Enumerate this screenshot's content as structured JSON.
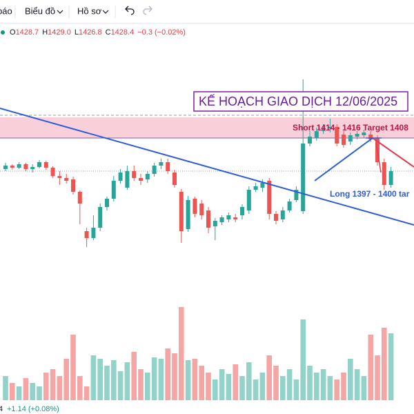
{
  "toolbar": {
    "items": [
      "báo",
      "Biểu đồ",
      "Hồ sơ"
    ]
  },
  "legend": {
    "fields": [
      {
        "label": "O",
        "value": "1428.7"
      },
      {
        "label": "H",
        "value": "1429.0"
      },
      {
        "label": "L",
        "value": "1426.8"
      },
      {
        "label": "C",
        "value": "1428.4"
      }
    ],
    "change": "−0.3 (−0.02%)"
  },
  "footer": {
    "change": "+1.14 (+0.08%)"
  },
  "chart_data": {
    "type": "candlestick",
    "title": "KẾ HOẠCH GIAO DỊCH 12/06/2025",
    "annotations": {
      "short": "Short 1414 - 1416 Target 1408",
      "long": "Long 1397 - 1400 tar"
    },
    "up_color": "#26a69a",
    "down_color": "#ef5350",
    "volume_up_color": "#92d2c8",
    "volume_down_color": "#f5a5a4",
    "ylim": [
      1413,
      1449
    ],
    "open": [
      1428.5,
      1429.0,
      1428.7,
      1429.2,
      1428.5,
      1428.8,
      1429.5,
      1428.7,
      1427.5,
      1427.2,
      1427.0,
      1425.2,
      1419.5,
      1418.5,
      1420.0,
      1423.0,
      1424.2,
      1426.8,
      1425.8,
      1428.2,
      1427.2,
      1427.0,
      1427.8,
      1429.0,
      1429.5,
      1428.0,
      1425.2,
      1419.8,
      1424.2,
      1423.5,
      1422.5,
      1420.2,
      1420.8,
      1421.2,
      1421.5,
      1421.8,
      1422.5,
      1425.5,
      1425.8,
      1426.8,
      1422.0,
      1421.2,
      1422.5,
      1424.0,
      1422.4,
      1432.2,
      1433.0,
      1434.0,
      1434.4,
      1434.6,
      1433.5,
      1432.5,
      1433.2,
      1433.4,
      1433.5,
      1433.0,
      1429.5,
      1426.2
    ],
    "high": [
      1429.4,
      1429.2,
      1429.5,
      1429.4,
      1429.2,
      1429.8,
      1429.7,
      1428.9,
      1428.2,
      1427.8,
      1427.4,
      1425.4,
      1420.0,
      1421.8,
      1423.5,
      1424.5,
      1427.5,
      1428.5,
      1429.0,
      1429.0,
      1427.8,
      1428.2,
      1429.4,
      1430.0,
      1430.0,
      1428.4,
      1425.6,
      1424.6,
      1424.5,
      1424.0,
      1423.0,
      1421.4,
      1421.8,
      1422.2,
      1422.0,
      1423.4,
      1426.0,
      1426.5,
      1427.0,
      1427.2,
      1422.4,
      1423.0,
      1424.2,
      1426.0,
      1441.5,
      1434.0,
      1434.5,
      1435.0,
      1435.8,
      1435.0,
      1434.0,
      1433.8,
      1434.0,
      1434.2,
      1434.0,
      1433.4,
      1430.0,
      1428.8
    ],
    "low": [
      1428.2,
      1428.4,
      1428.5,
      1428.2,
      1428.0,
      1428.6,
      1428.4,
      1427.2,
      1426.2,
      1426.4,
      1424.8,
      1420.5,
      1417.2,
      1418.2,
      1419.5,
      1422.5,
      1423.8,
      1426.4,
      1425.5,
      1426.8,
      1426.2,
      1426.5,
      1427.4,
      1428.5,
      1427.8,
      1425.8,
      1417.8,
      1419.4,
      1421.5,
      1421.2,
      1419.2,
      1418.2,
      1420.4,
      1420.8,
      1420.8,
      1421.2,
      1422.0,
      1425.2,
      1425.2,
      1421.2,
      1420.5,
      1420.8,
      1422.2,
      1423.7,
      1422.0,
      1431.8,
      1432.6,
      1433.6,
      1433.8,
      1431.8,
      1431.6,
      1432.0,
      1432.8,
      1433.0,
      1432.4,
      1429.0,
      1425.5,
      1425.8
    ],
    "close": [
      1429.0,
      1428.7,
      1429.2,
      1428.5,
      1428.8,
      1429.5,
      1428.7,
      1427.5,
      1427.2,
      1426.8,
      1425.2,
      1423.5,
      1418.5,
      1420.0,
      1423.0,
      1424.2,
      1426.8,
      1428.0,
      1428.2,
      1427.2,
      1426.8,
      1427.8,
      1429.0,
      1429.5,
      1428.2,
      1426.2,
      1419.5,
      1424.0,
      1422.0,
      1421.8,
      1420.0,
      1421.0,
      1421.5,
      1421.8,
      1421.2,
      1423.0,
      1425.5,
      1426.0,
      1426.5,
      1422.0,
      1421.0,
      1422.5,
      1423.8,
      1425.5,
      1432.2,
      1433.2,
      1434.0,
      1434.4,
      1434.6,
      1432.2,
      1432.0,
      1433.4,
      1433.6,
      1433.8,
      1432.8,
      1429.5,
      1426.2,
      1428.2
    ],
    "volume": [
      35,
      25,
      20,
      32,
      25,
      20,
      40,
      45,
      35,
      60,
      95,
      35,
      20,
      65,
      60,
      50,
      58,
      42,
      55,
      70,
      45,
      40,
      62,
      60,
      75,
      68,
      135,
      58,
      60,
      50,
      40,
      30,
      45,
      38,
      52,
      35,
      55,
      30,
      40,
      65,
      50,
      35,
      45,
      30,
      117,
      50,
      40,
      45,
      35,
      30,
      40,
      60,
      45,
      35,
      95,
      65,
      105,
      97
    ],
    "volume_lim": [
      0,
      150
    ]
  }
}
